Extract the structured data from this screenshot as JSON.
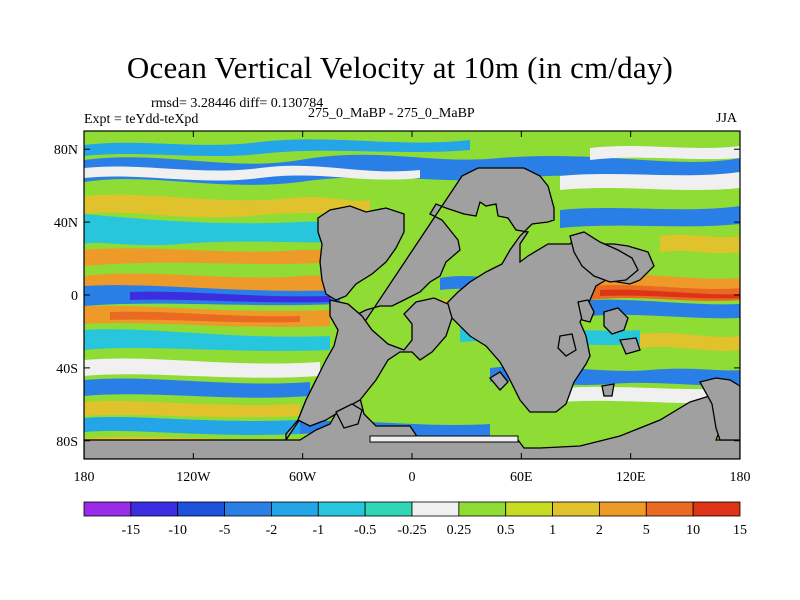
{
  "chart_data": {
    "type": "heatmap",
    "title": "Ocean Vertical Velocity at 10m (in cm/day)",
    "stats_text": "rmsd= 3.28446 diff= 0.130784",
    "experiment_text": "Expt = teYdd-teXpd",
    "case_text": "275_0_MaBP - 275_0_MaBP",
    "season": "JJA",
    "units": "cm/day",
    "x_axis": {
      "range": [
        -180,
        180
      ],
      "ticks": [
        -180,
        -120,
        -60,
        0,
        60,
        120,
        180
      ],
      "tick_labels": [
        "180",
        "120W",
        "60W",
        "0",
        "60E",
        "120E",
        "180"
      ]
    },
    "y_axis": {
      "range": [
        -90,
        90
      ],
      "ticks": [
        80,
        40,
        0,
        -40,
        -80
      ],
      "tick_labels": [
        "80N",
        "40N",
        "0",
        "40S",
        "80S"
      ]
    },
    "colorbar": {
      "levels": [
        "-15",
        "-10",
        "-5",
        "-2",
        "-1",
        "-0.5",
        "-0.25",
        "0.25",
        "0.5",
        "1",
        "2",
        "5",
        "10",
        "15"
      ],
      "colors": [
        "#9a2be8",
        "#3b2ee0",
        "#1f52dc",
        "#2a7fe6",
        "#23a5e8",
        "#28c6dc",
        "#2fd7b6",
        "#f0f0f0",
        "#8fdc34",
        "#c6dc22",
        "#e0c22c",
        "#ee9a28",
        "#ea6a22",
        "#dd3418"
      ]
    },
    "land_color": "#a0a0a0",
    "annotations": [
      "strong negative (blue/purple) band along the equatorial Pacific",
      "strong positive (orange/red) band along the equatorial Indian Ocean",
      "positive (orange) upwelling along continental margins"
    ]
  }
}
